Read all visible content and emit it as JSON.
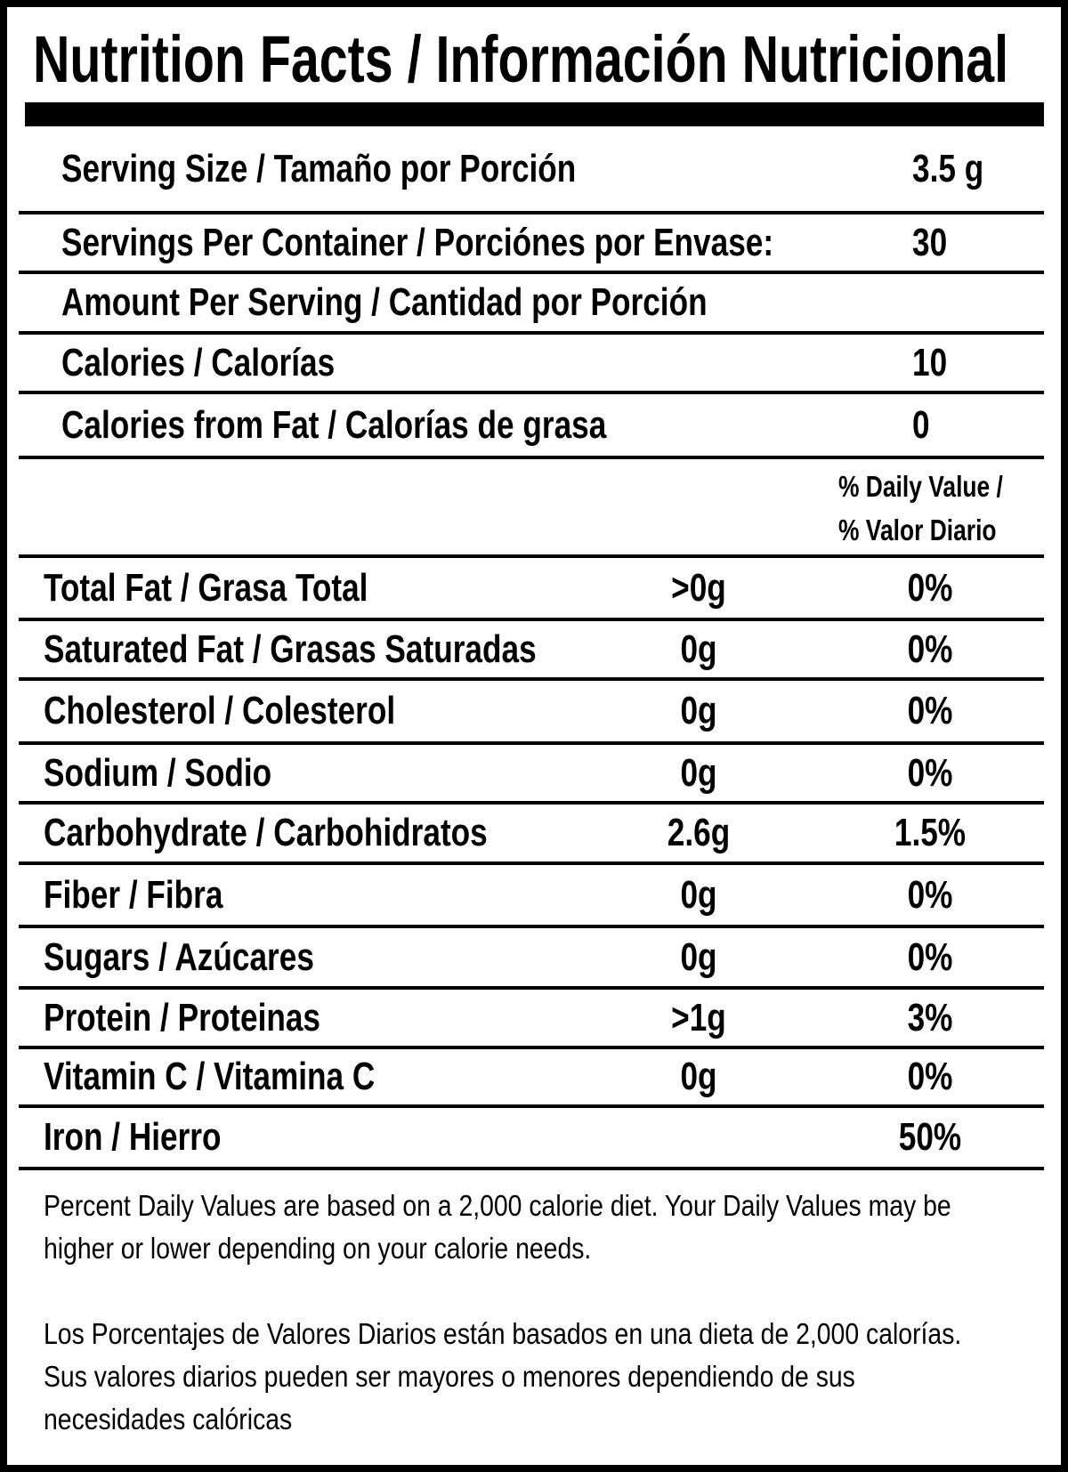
{
  "title": "Nutrition Facts / Información Nutricional",
  "header_rows": [
    {
      "label": "Serving Size / Tamaño por Porción",
      "value": "3.5 g"
    },
    {
      "label": "Servings Per Container / Porciónes por Envase:",
      "value": "30"
    },
    {
      "label": "Amount Per Serving / Cantidad por Porción",
      "value": ""
    },
    {
      "label": "Calories / Calorías",
      "value": "10"
    },
    {
      "label": "Calories from Fat / Calorías de grasa",
      "value": "0"
    }
  ],
  "daily_value_header": {
    "line1": "% Daily Value /",
    "line2": "% Valor Diario"
  },
  "nutrients": [
    {
      "name": "Total Fat / Grasa Total",
      "amount": ">0g",
      "dv": "0%"
    },
    {
      "name": "Saturated Fat / Grasas Saturadas",
      "amount": "0g",
      "dv": "0%"
    },
    {
      "name": "Cholesterol / Colesterol",
      "amount": "0g",
      "dv": "0%"
    },
    {
      "name": "Sodium / Sodio",
      "amount": "0g",
      "dv": "0%"
    },
    {
      "name": "Carbohydrate / Carbohidratos",
      "amount": "2.6g",
      "dv": "1.5%"
    },
    {
      "name": "Fiber / Fibra",
      "amount": "0g",
      "dv": "0%"
    },
    {
      "name": "Sugars / Azúcares",
      "amount": "0g",
      "dv": "0%"
    },
    {
      "name": "Protein / Proteinas",
      "amount": ">1g",
      "dv": "3%"
    },
    {
      "name": "Vitamin C / Vitamina C",
      "amount": "0g",
      "dv": "0%"
    },
    {
      "name": "Iron / Hierro",
      "amount": "",
      "dv": "50%"
    }
  ],
  "footnote_en": "Percent Daily Values are based on a 2,000 calorie diet. Your Daily Values may be higher or lower depending on your calorie needs.",
  "footnote_es": "Los Porcentajes de Valores Diarios están basados en una dieta de 2,000 calorías. Sus valores diarios pueden ser mayores o menores dependiendo de sus necesidades calóricas"
}
